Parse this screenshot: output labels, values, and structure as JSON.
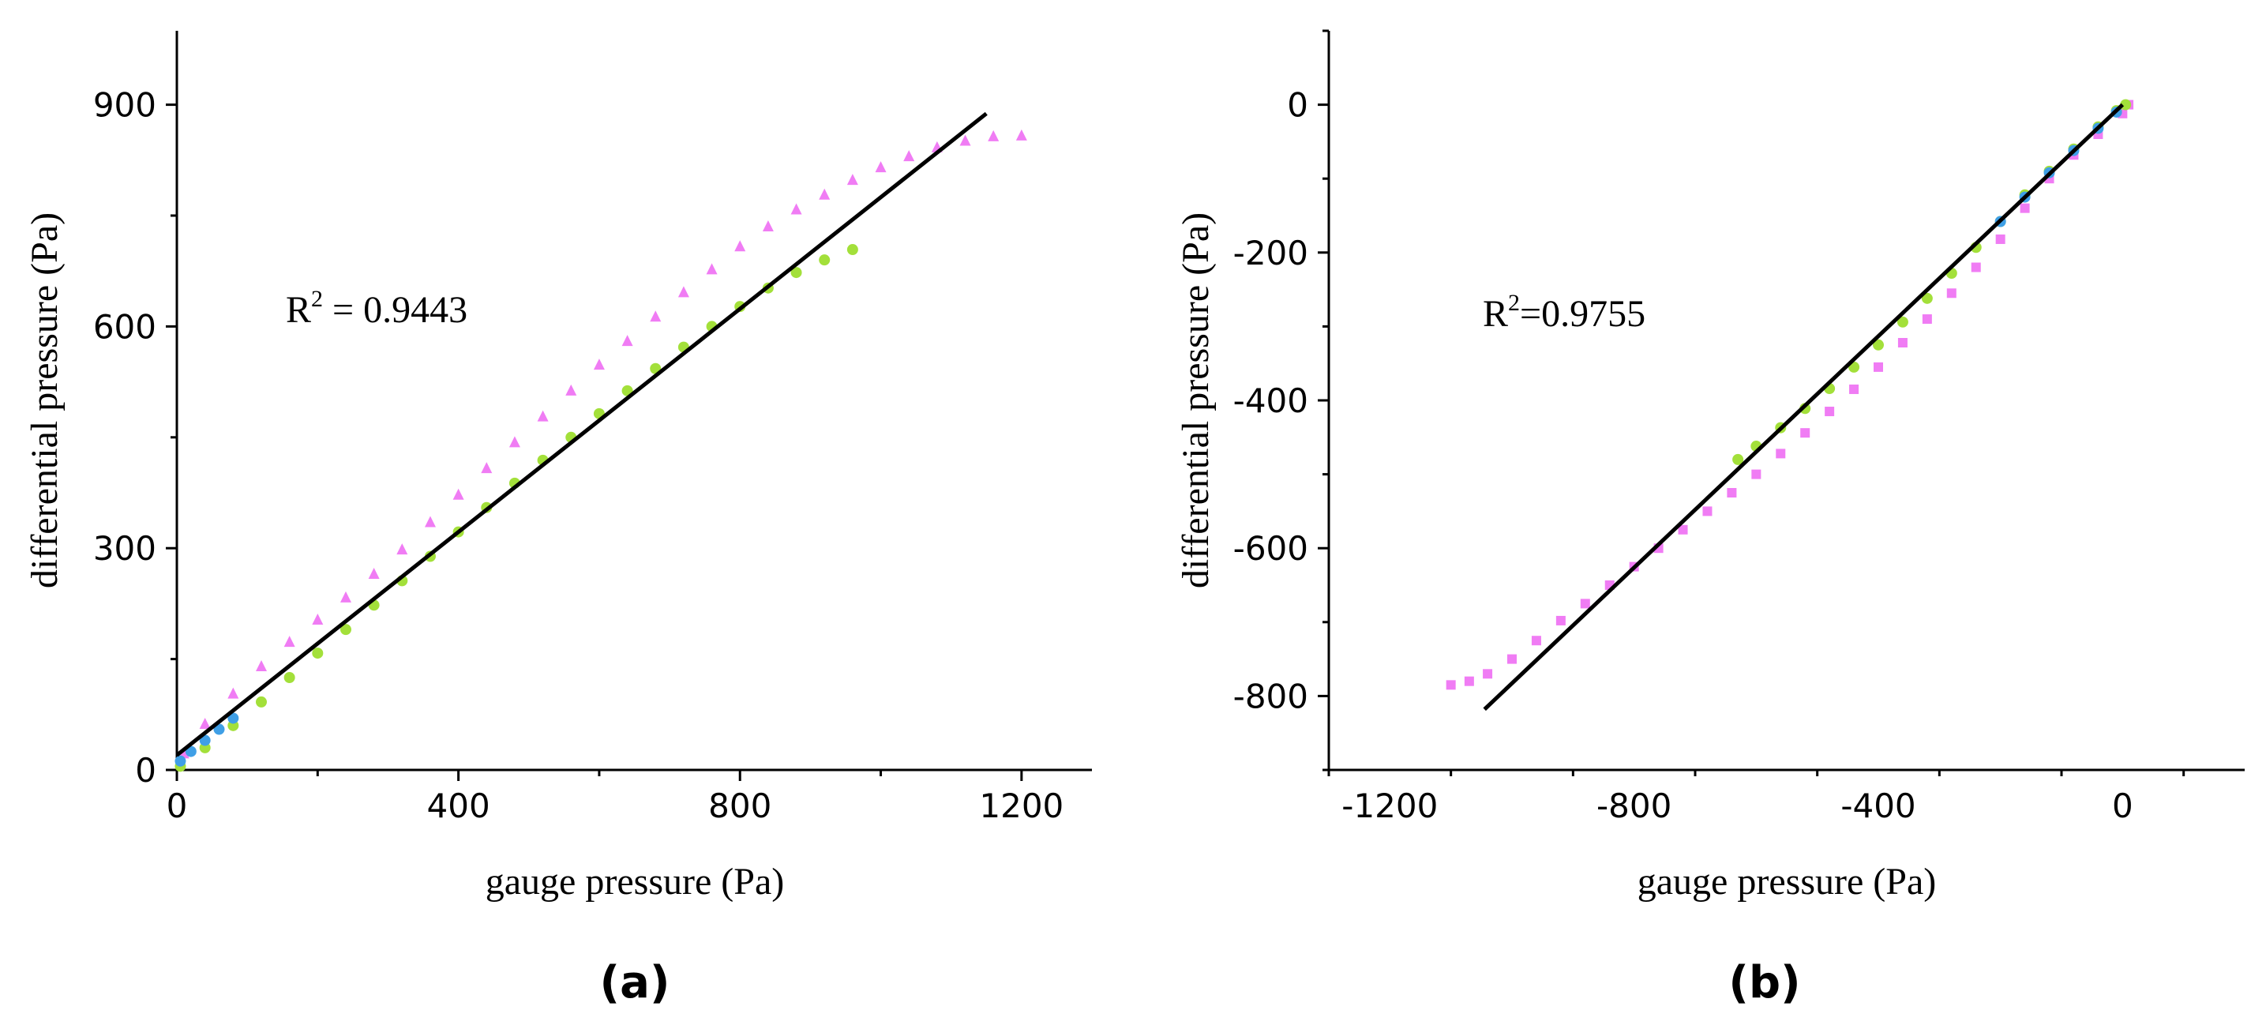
{
  "colors": {
    "axis": "#000000",
    "fit_line": "#000000",
    "series_triangle": "#f07cf4",
    "series_circle": "#a3e03a",
    "series_blue": "#3f9fe6",
    "series_square": "#f07cf4"
  },
  "chart_data": [
    {
      "id": "a",
      "type": "scatter",
      "panel_label": "(a)",
      "xlabel": "gauge pressure (Pa)",
      "ylabel": "differential pressure (Pa)",
      "xlim": [
        0,
        1300
      ],
      "ylim": [
        0,
        1000
      ],
      "xticks": [
        0,
        400,
        800,
        1200
      ],
      "xtick_labels": [
        "0",
        "400",
        "800",
        "1200"
      ],
      "yticks": [
        0,
        300,
        600,
        900
      ],
      "ytick_labels": [
        "0",
        "300",
        "600",
        "900"
      ],
      "annotation": {
        "base": "R",
        "sup": "2",
        "rest": " = 0.9443"
      },
      "fit_line": {
        "x": [
          0,
          1150
        ],
        "y": [
          20,
          888
        ]
      },
      "series": [
        {
          "name": "triangles",
          "marker": "triangle",
          "color": "#f07cf4",
          "x": [
            10,
            40,
            80,
            120,
            160,
            200,
            240,
            280,
            320,
            360,
            400,
            440,
            480,
            520,
            560,
            600,
            640,
            680,
            720,
            760,
            800,
            840,
            880,
            920,
            960,
            1000,
            1040,
            1080,
            1120,
            1160,
            1200
          ],
          "y": [
            22,
            62,
            103,
            140,
            173,
            203,
            233,
            265,
            298,
            335,
            372,
            408,
            443,
            478,
            513,
            548,
            580,
            613,
            646,
            677,
            708,
            735,
            758,
            778,
            798,
            815,
            830,
            842,
            851,
            857,
            858
          ]
        },
        {
          "name": "circles",
          "marker": "circle",
          "color": "#a3e03a",
          "x": [
            5,
            40,
            80,
            120,
            160,
            200,
            240,
            280,
            320,
            360,
            400,
            440,
            480,
            520,
            560,
            600,
            640,
            680,
            720,
            760,
            800,
            840,
            880,
            920,
            960
          ],
          "y": [
            5,
            30,
            60,
            92,
            125,
            158,
            190,
            223,
            256,
            289,
            322,
            355,
            388,
            419,
            450,
            482,
            513,
            543,
            572,
            600,
            627,
            652,
            673,
            690,
            704
          ]
        },
        {
          "name": "blue",
          "marker": "circle",
          "color": "#3f9fe6",
          "x": [
            5,
            20,
            40,
            60,
            80
          ],
          "y": [
            12,
            25,
            40,
            55,
            70
          ]
        }
      ]
    },
    {
      "id": "b",
      "type": "scatter",
      "panel_label": "(b)",
      "xlabel": "gauge pressure (Pa)",
      "ylabel": "differential pressure (Pa)",
      "xlim": [
        -1300,
        200
      ],
      "ylim": [
        -900,
        100
      ],
      "xticks": [
        -1200,
        -800,
        -400,
        0
      ],
      "xtick_labels": [
        "-1200",
        "-800",
        "-400",
        "0"
      ],
      "yticks": [
        -800,
        -600,
        -400,
        -200,
        0
      ],
      "ytick_labels": [
        "-800",
        "-600",
        "-400",
        "-200",
        "0"
      ],
      "annotation": {
        "base": "R",
        "sup": "2",
        "rest": "=0.9755"
      },
      "fit_line": {
        "x": [
          -1045,
          0
        ],
        "y": [
          -818,
          0
        ]
      },
      "series": [
        {
          "name": "squares",
          "marker": "square",
          "color": "#f07cf4",
          "x": [
            -1100,
            -1070,
            -1040,
            -1000,
            -960,
            -920,
            -880,
            -840,
            -800,
            -760,
            -720,
            -680,
            -640,
            -600,
            -560,
            -520,
            -480,
            -440,
            -400,
            -360,
            -320,
            -280,
            -240,
            -200,
            -160,
            -120,
            -80,
            -40,
            0,
            10
          ],
          "y": [
            -785,
            -780,
            -770,
            -750,
            -725,
            -698,
            -675,
            -650,
            -625,
            -600,
            -575,
            -550,
            -525,
            -500,
            -472,
            -444,
            -415,
            -385,
            -355,
            -322,
            -290,
            -255,
            -220,
            -182,
            -140,
            -100,
            -68,
            -40,
            -12,
            0
          ]
        },
        {
          "name": "circles",
          "marker": "circle",
          "color": "#a3e03a",
          "x": [
            -630,
            -600,
            -560,
            -520,
            -480,
            -440,
            -400,
            -360,
            -320,
            -280,
            -240,
            -200,
            -160,
            -120,
            -80,
            -40,
            -10,
            5
          ],
          "y": [
            -480,
            -462,
            -437,
            -411,
            -384,
            -355,
            -325,
            -294,
            -262,
            -228,
            -193,
            -158,
            -122,
            -90,
            -60,
            -30,
            -8,
            0
          ]
        },
        {
          "name": "blue",
          "marker": "circle",
          "color": "#3f9fe6",
          "x": [
            -200,
            -160,
            -120,
            -80,
            -40,
            -10
          ],
          "y": [
            -158,
            -125,
            -92,
            -62,
            -32,
            -10
          ]
        }
      ]
    }
  ]
}
